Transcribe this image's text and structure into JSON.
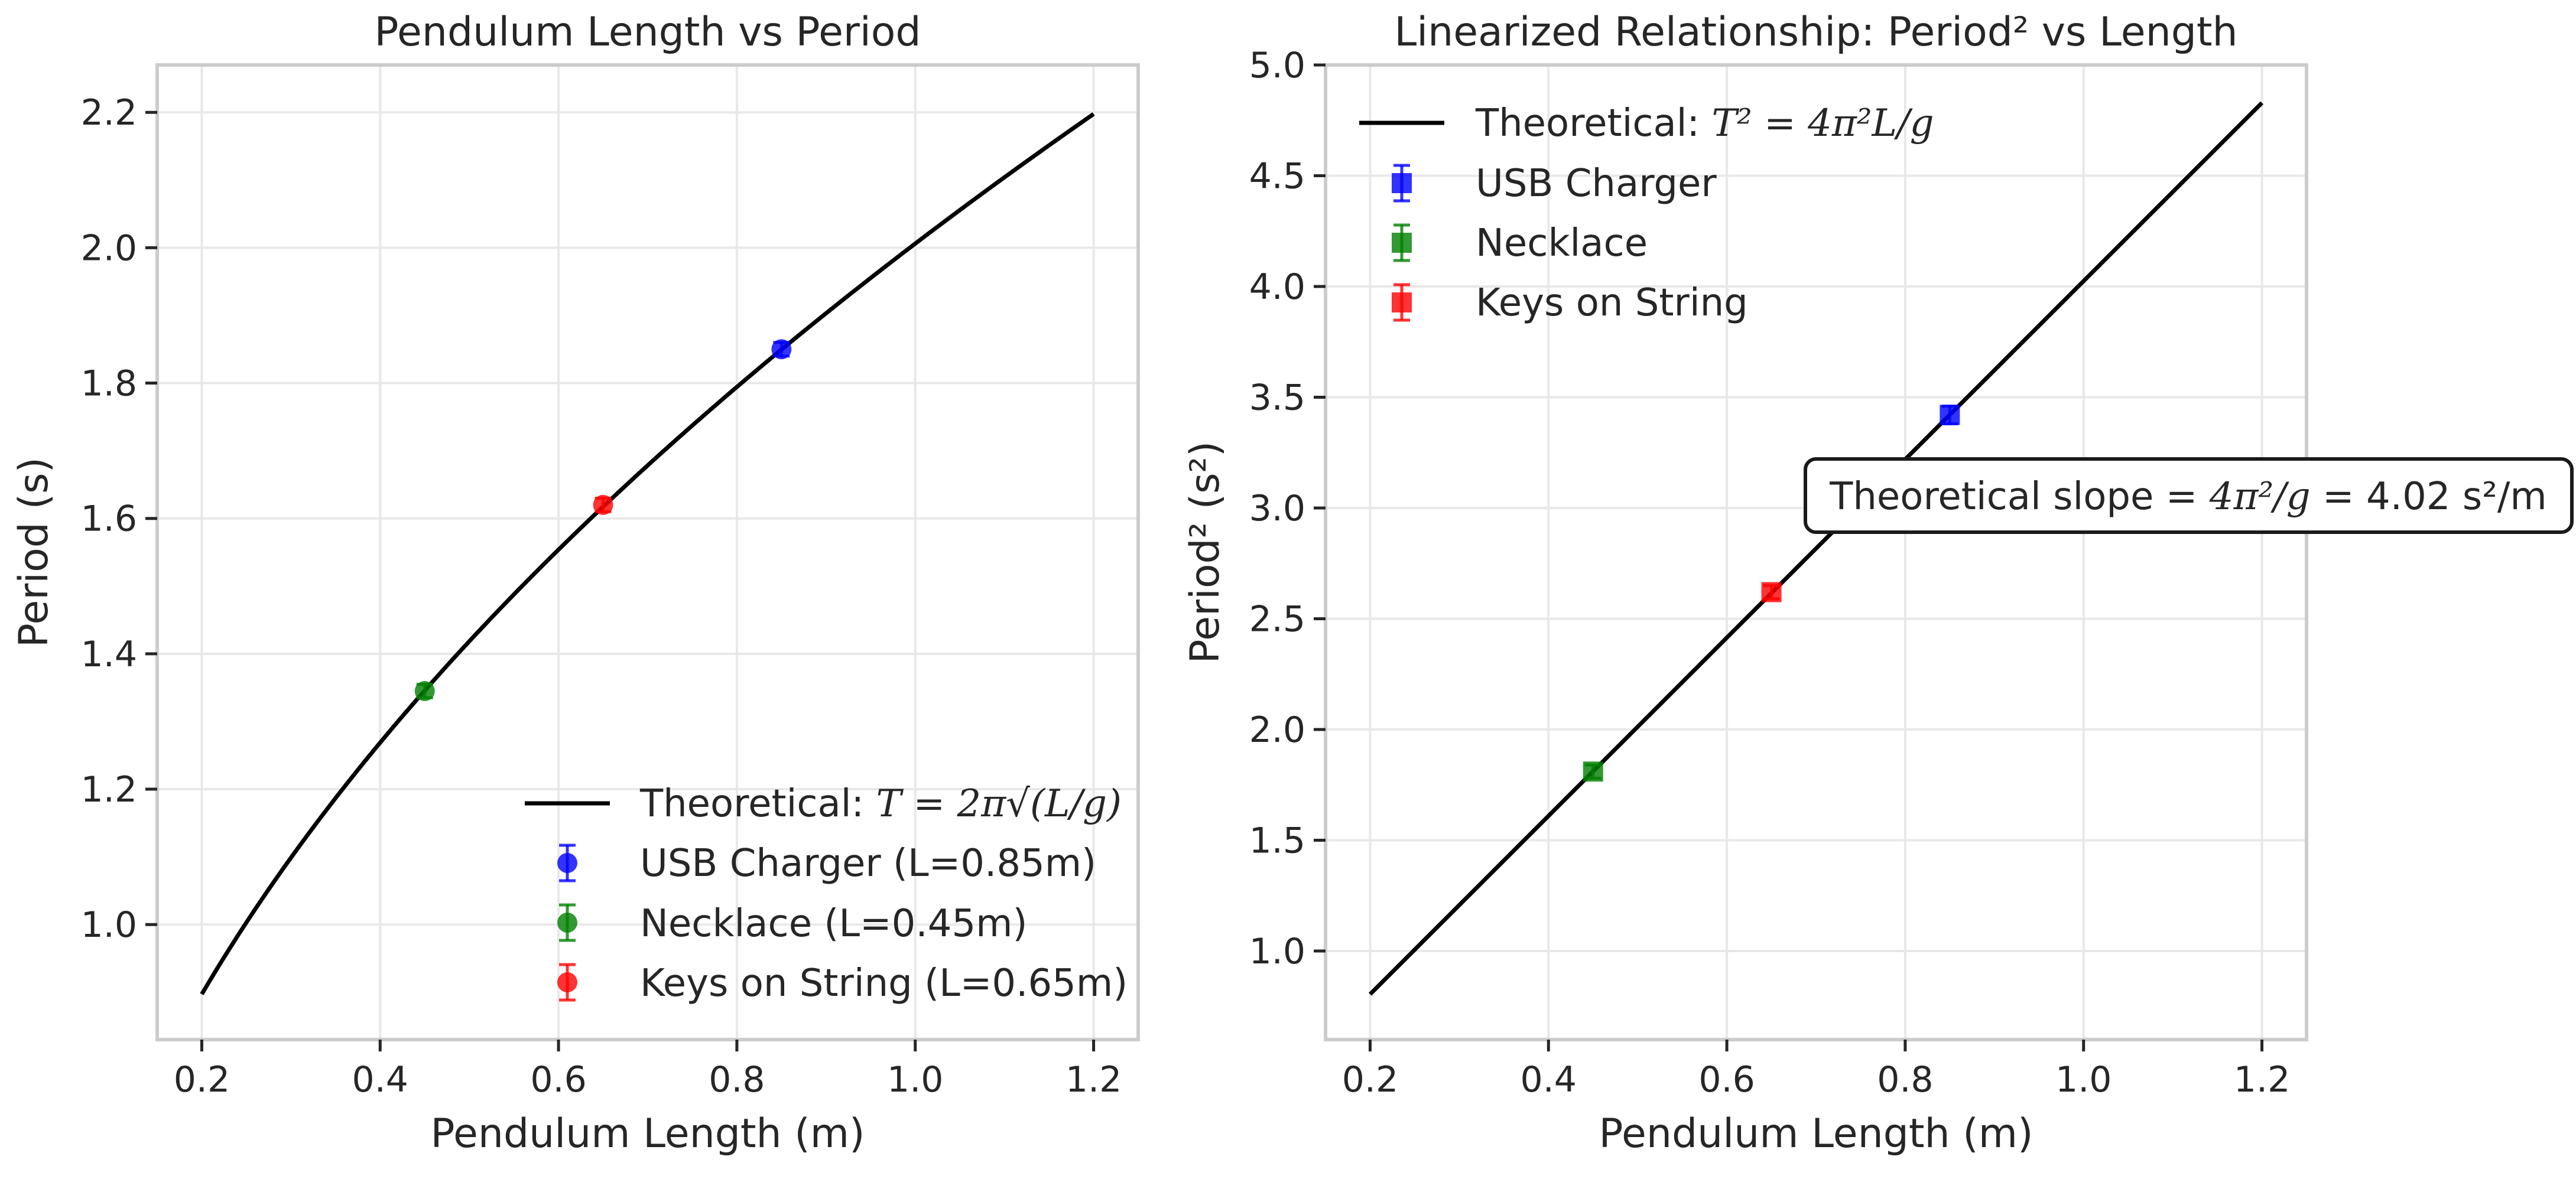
{
  "chart_data": [
    {
      "type": "line+errorbar",
      "title": "Pendulum Length vs Period",
      "xlabel": "Pendulum Length (m)",
      "ylabel": "Period (s)",
      "xlim": [
        0.15,
        1.25
      ],
      "ylim": [
        0.83,
        2.27
      ],
      "xticks": [
        0.2,
        0.4,
        0.6,
        0.8,
        1.0,
        1.2
      ],
      "xtick_labels": [
        "0.2",
        "0.4",
        "0.6",
        "0.8",
        "1.0",
        "1.2"
      ],
      "yticks": [
        1.0,
        1.2,
        1.4,
        1.6,
        1.8,
        2.0,
        2.2
      ],
      "ytick_labels": [
        "1.0",
        "1.2",
        "1.4",
        "1.6",
        "1.8",
        "2.0",
        "2.2"
      ],
      "grid": true,
      "legend_position": "lower right",
      "theory": {
        "label_prefix": "Theoretical: ",
        "equation_text": "T = 2π√(L/g)",
        "L_from": 0.2,
        "L_to": 1.2,
        "g": 9.81,
        "color": "#000000"
      },
      "series": [
        {
          "name": "USB Charger (L=0.85m)",
          "x": [
            0.85
          ],
          "y": [
            1.85
          ],
          "yerr": [
            0.01
          ],
          "marker": "circle",
          "color": "#0000ff"
        },
        {
          "name": "Necklace (L=0.45m)",
          "x": [
            0.45
          ],
          "y": [
            1.345
          ],
          "yerr": [
            0.01
          ],
          "marker": "circle",
          "color": "#008000"
        },
        {
          "name": "Keys on String (L=0.65m)",
          "x": [
            0.65
          ],
          "y": [
            1.62
          ],
          "yerr": [
            0.01
          ],
          "marker": "circle",
          "color": "#ff0000"
        }
      ]
    },
    {
      "type": "line+errorbar",
      "title": "Linearized Relationship: Period² vs Length",
      "xlabel": "Pendulum Length (m)",
      "ylabel": "Period² (s²)",
      "xlim": [
        0.15,
        1.25
      ],
      "ylim": [
        0.6,
        5.0
      ],
      "xticks": [
        0.2,
        0.4,
        0.6,
        0.8,
        1.0,
        1.2
      ],
      "xtick_labels": [
        "0.2",
        "0.4",
        "0.6",
        "0.8",
        "1.0",
        "1.2"
      ],
      "yticks": [
        1.0,
        1.5,
        2.0,
        2.5,
        3.0,
        3.5,
        4.0,
        4.5,
        5.0
      ],
      "ytick_labels": [
        "1.0",
        "1.5",
        "2.0",
        "2.5",
        "3.0",
        "3.5",
        "4.0",
        "4.5",
        "5.0"
      ],
      "grid": true,
      "legend_position": "upper left",
      "theory": {
        "label_prefix": "Theoretical: ",
        "equation_text": "T² = 4π²L/g",
        "L_from": 0.2,
        "L_to": 1.2,
        "g": 9.81,
        "color": "#000000"
      },
      "series": [
        {
          "name": "USB Charger",
          "x": [
            0.85
          ],
          "y": [
            3.42
          ],
          "yerr": [
            0.04
          ],
          "marker": "square",
          "color": "#0000ff"
        },
        {
          "name": "Necklace",
          "x": [
            0.45
          ],
          "y": [
            1.81
          ],
          "yerr": [
            0.03
          ],
          "marker": "square",
          "color": "#008000"
        },
        {
          "name": "Keys on String",
          "x": [
            0.65
          ],
          "y": [
            2.62
          ],
          "yerr": [
            0.03
          ],
          "marker": "square",
          "color": "#ff0000"
        }
      ],
      "annotation": {
        "prefix": "Theoretical slope = ",
        "equation_text": "4π²/g",
        "suffix": " = 4.02 s²/m"
      }
    }
  ]
}
